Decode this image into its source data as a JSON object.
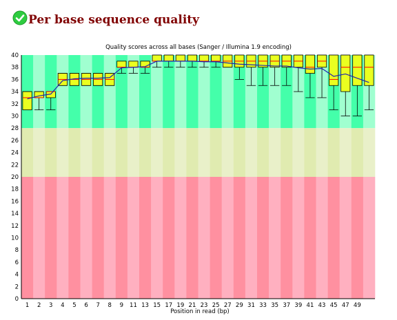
{
  "header": {
    "status_icon": "check-circle-icon",
    "status_color": "#2ecc40",
    "title": "Per base sequence quality"
  },
  "chart_data": {
    "type": "box",
    "title": "Quality scores across all bases (Sanger / Illumina 1.9 encoding)",
    "xlabel": "Position in read (bp)",
    "ylabel": "",
    "ylim": [
      0,
      40
    ],
    "y_ticks": [
      "0",
      "2",
      "4",
      "6",
      "8",
      "10",
      "12",
      "14",
      "16",
      "18",
      "20",
      "22",
      "24",
      "26",
      "28",
      "30",
      "32",
      "34",
      "36",
      "38",
      "40"
    ],
    "x_tick_labels": [
      "1",
      "2",
      "3",
      "4",
      "5",
      "6",
      "7",
      "8",
      "9",
      "11",
      "13",
      "15",
      "17",
      "19",
      "21",
      "23",
      "25",
      "27",
      "29",
      "31",
      "33",
      "35",
      "37",
      "39",
      "41",
      "43",
      "45",
      "47",
      "49"
    ],
    "zones": [
      {
        "from": 28,
        "to": 40,
        "color": "#44ffaa",
        "alt_color": "#a0ffd0"
      },
      {
        "from": 20,
        "to": 28,
        "color": "#e0ebb0",
        "alt_color": "#e9f0c9"
      },
      {
        "from": 0,
        "to": 20,
        "color": "#ff90a0",
        "alt_color": "#ffb0c0"
      }
    ],
    "box_color": "#eaff20",
    "median_color": "#ff0000",
    "mean_line_color": "#2020b0",
    "positions": [
      "1",
      "2",
      "3",
      "4",
      "5",
      "6",
      "7",
      "8",
      "9",
      "10-11",
      "12-13",
      "14-15",
      "16-17",
      "18-19",
      "20-21",
      "22-23",
      "24-25",
      "26-27",
      "28-29",
      "30-31",
      "32-33",
      "34-35",
      "36-37",
      "38-39",
      "40-41",
      "42-43",
      "44-45",
      "46-47",
      "48-49",
      "50-51"
    ],
    "lower_whisker": [
      31,
      31,
      31,
      35,
      35,
      35,
      35,
      35,
      37,
      37,
      37,
      38,
      38,
      38,
      38,
      38,
      38,
      38,
      36,
      35,
      35,
      35,
      35,
      34,
      33,
      33,
      31,
      30,
      30,
      31
    ],
    "q1": [
      31,
      33,
      33,
      35,
      35,
      35,
      35,
      35,
      38,
      38,
      38,
      39,
      39,
      39,
      39,
      39,
      39,
      38,
      38,
      38,
      38,
      38,
      38,
      38,
      37,
      38,
      35,
      34,
      35,
      35
    ],
    "median": [
      33,
      33,
      34,
      36,
      36,
      36,
      36,
      36,
      38,
      38,
      38,
      39,
      39,
      39,
      39,
      39,
      39,
      39,
      39,
      39,
      39,
      39,
      39,
      39,
      38,
      39,
      36,
      38,
      38,
      38
    ],
    "q3": [
      34,
      34,
      34,
      37,
      37,
      37,
      37,
      37,
      39,
      39,
      39,
      40,
      40,
      40,
      40,
      40,
      40,
      40,
      40,
      40,
      40,
      40,
      40,
      40,
      40,
      40,
      40,
      40,
      40,
      40
    ],
    "upper_whisker": [
      34,
      34,
      34,
      37,
      37,
      37,
      37,
      37,
      39,
      39,
      39,
      40,
      40,
      40,
      40,
      40,
      40,
      40,
      40,
      40,
      40,
      40,
      40,
      40,
      40,
      40,
      40,
      40,
      40,
      40
    ],
    "mean": [
      32.8,
      33.3,
      33.6,
      35.8,
      36.1,
      36.2,
      36.2,
      36.3,
      37.9,
      38.0,
      38.1,
      39.0,
      39.0,
      39.0,
      39.0,
      38.9,
      38.9,
      38.7,
      38.5,
      38.4,
      38.3,
      38.2,
      38.2,
      37.9,
      37.7,
      37.8,
      36.5,
      36.9,
      36.2,
      35.5
    ]
  }
}
